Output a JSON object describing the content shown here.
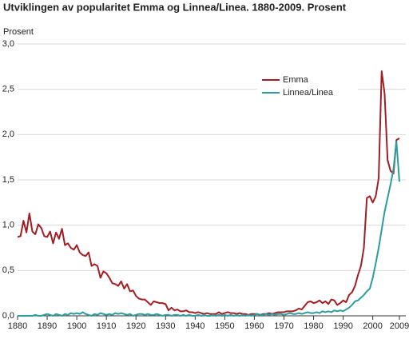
{
  "chart_data": {
    "type": "line",
    "title": "Utviklingen av popularitet Emma og Linnea/Linea. 1880-2009. Prosent",
    "y_label": "Prosent",
    "x": [
      1880,
      1881,
      1882,
      1883,
      1884,
      1885,
      1886,
      1887,
      1888,
      1889,
      1890,
      1891,
      1892,
      1893,
      1894,
      1895,
      1896,
      1897,
      1898,
      1899,
      1900,
      1901,
      1902,
      1903,
      1904,
      1905,
      1906,
      1907,
      1908,
      1909,
      1910,
      1911,
      1912,
      1913,
      1914,
      1915,
      1916,
      1917,
      1918,
      1919,
      1920,
      1921,
      1922,
      1923,
      1924,
      1925,
      1926,
      1927,
      1928,
      1929,
      1930,
      1931,
      1932,
      1933,
      1934,
      1935,
      1936,
      1937,
      1938,
      1939,
      1940,
      1941,
      1942,
      1943,
      1944,
      1945,
      1946,
      1947,
      1948,
      1949,
      1950,
      1951,
      1952,
      1953,
      1954,
      1955,
      1956,
      1957,
      1958,
      1959,
      1960,
      1961,
      1962,
      1963,
      1964,
      1965,
      1966,
      1967,
      1968,
      1969,
      1970,
      1971,
      1972,
      1973,
      1974,
      1975,
      1976,
      1977,
      1978,
      1979,
      1980,
      1981,
      1982,
      1983,
      1984,
      1985,
      1986,
      1987,
      1988,
      1989,
      1990,
      1991,
      1992,
      1993,
      1994,
      1995,
      1996,
      1997,
      1998,
      1999,
      2000,
      2001,
      2002,
      2003,
      2004,
      2005,
      2006,
      2007,
      2008,
      2009
    ],
    "series": [
      {
        "name": "Emma",
        "color": "#a31d24",
        "values": [
          0.87,
          0.88,
          1.05,
          0.92,
          1.13,
          0.93,
          0.9,
          1.01,
          0.97,
          0.88,
          0.87,
          0.93,
          0.8,
          0.92,
          0.85,
          0.96,
          0.78,
          0.8,
          0.75,
          0.73,
          0.78,
          0.7,
          0.67,
          0.66,
          0.7,
          0.55,
          0.57,
          0.55,
          0.42,
          0.49,
          0.47,
          0.42,
          0.36,
          0.35,
          0.33,
          0.38,
          0.3,
          0.35,
          0.27,
          0.28,
          0.22,
          0.19,
          0.18,
          0.18,
          0.15,
          0.12,
          0.16,
          0.15,
          0.14,
          0.14,
          0.13,
          0.06,
          0.09,
          0.06,
          0.07,
          0.05,
          0.05,
          0.06,
          0.04,
          0.04,
          0.03,
          0.04,
          0.03,
          0.02,
          0.03,
          0.02,
          0.02,
          0.02,
          0.04,
          0.02,
          0.03,
          0.04,
          0.03,
          0.03,
          0.02,
          0.03,
          0.02,
          0.02,
          0.01,
          0.02,
          0.02,
          0.02,
          0.01,
          0.02,
          0.02,
          0.03,
          0.02,
          0.03,
          0.04,
          0.04,
          0.04,
          0.05,
          0.05,
          0.05,
          0.06,
          0.08,
          0.07,
          0.11,
          0.15,
          0.16,
          0.14,
          0.15,
          0.17,
          0.14,
          0.16,
          0.13,
          0.18,
          0.17,
          0.12,
          0.14,
          0.17,
          0.15,
          0.23,
          0.26,
          0.33,
          0.45,
          0.55,
          0.75,
          1.3,
          1.32,
          1.25,
          1.32,
          1.52,
          2.7,
          2.45,
          1.72,
          1.6,
          1.57,
          1.94,
          1.96
        ]
      },
      {
        "name": "Linnea/Linea",
        "color": "#2a9d9c",
        "values": [
          0.0,
          0.0,
          0.0,
          0.0,
          0.0,
          0.0,
          0.01,
          0.0,
          0.0,
          0.01,
          0.02,
          0.01,
          0.0,
          0.02,
          0.01,
          0.0,
          0.02,
          0.01,
          0.03,
          0.02,
          0.03,
          0.02,
          0.04,
          0.02,
          0.01,
          0.0,
          0.02,
          0.01,
          0.03,
          0.02,
          0.01,
          0.02,
          0.01,
          0.03,
          0.02,
          0.03,
          0.02,
          0.01,
          0.02,
          0.0,
          0.01,
          0.02,
          0.02,
          0.01,
          0.02,
          0.01,
          0.01,
          0.02,
          0.01,
          0.0,
          0.01,
          0.01,
          0.0,
          0.01,
          0.01,
          0.0,
          0.01,
          0.0,
          0.01,
          0.0,
          0.0,
          0.01,
          0.0,
          0.01,
          0.0,
          0.0,
          0.01,
          0.0,
          0.01,
          0.0,
          0.01,
          0.0,
          0.01,
          0.0,
          0.01,
          0.0,
          0.01,
          0.0,
          0.01,
          0.0,
          0.01,
          0.02,
          0.01,
          0.01,
          0.02,
          0.01,
          0.02,
          0.01,
          0.02,
          0.02,
          0.01,
          0.02,
          0.03,
          0.02,
          0.02,
          0.03,
          0.02,
          0.03,
          0.04,
          0.03,
          0.03,
          0.04,
          0.03,
          0.05,
          0.04,
          0.05,
          0.04,
          0.06,
          0.05,
          0.06,
          0.05,
          0.07,
          0.09,
          0.12,
          0.16,
          0.17,
          0.2,
          0.23,
          0.27,
          0.3,
          0.42,
          0.58,
          0.75,
          0.95,
          1.15,
          1.3,
          1.45,
          1.62,
          1.92,
          1.48
        ]
      }
    ],
    "xlim": [
      1880,
      2009
    ],
    "xticks": [
      1880,
      1890,
      1900,
      1910,
      1920,
      1930,
      1940,
      1950,
      1960,
      1970,
      1980,
      1990,
      2000,
      2009
    ],
    "ylim": [
      0,
      3
    ],
    "yticks": [
      {
        "value": 0,
        "label": "0,0"
      },
      {
        "value": 0.5,
        "label": "0,5"
      },
      {
        "value": 1,
        "label": "1,0"
      },
      {
        "value": 1.5,
        "label": "1,5"
      },
      {
        "value": 2,
        "label": "2,0"
      },
      {
        "value": 2.5,
        "label": "2,5"
      },
      {
        "value": 3,
        "label": "3,0"
      }
    ],
    "grid": true,
    "legend": "top-right"
  }
}
